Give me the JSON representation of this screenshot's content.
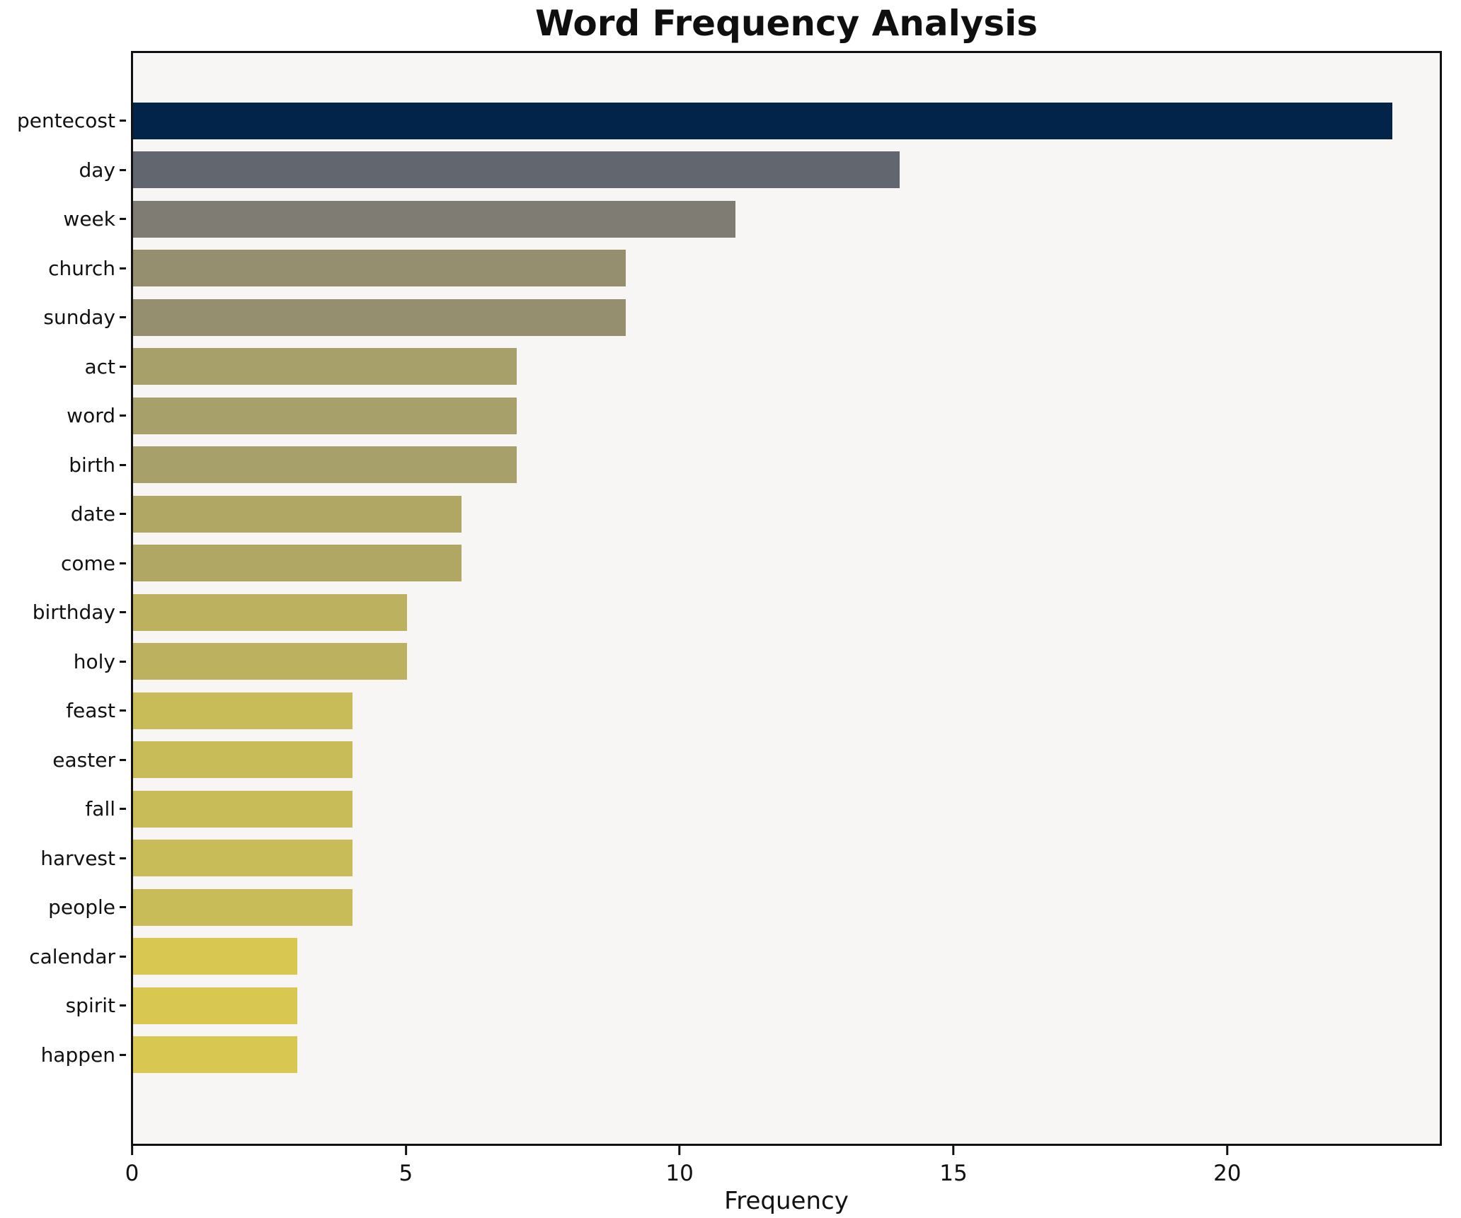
{
  "title": "Word Frequency Analysis",
  "xlabel": "Frequency",
  "colors": {
    "figure_bg": "#ffffff",
    "plot_bg": "#f7f6f4",
    "spine": "#111111",
    "text": "#111111"
  },
  "chart_data": {
    "type": "bar",
    "orientation": "horizontal",
    "title": "Word Frequency Analysis",
    "xlabel": "Frequency",
    "ylabel": "",
    "categories": [
      "pentecost",
      "day",
      "week",
      "church",
      "sunday",
      "act",
      "word",
      "birth",
      "date",
      "come",
      "birthday",
      "holy",
      "feast",
      "easter",
      "fall",
      "harvest",
      "people",
      "calendar",
      "spirit",
      "happen"
    ],
    "values": [
      23,
      14,
      11,
      9,
      9,
      7,
      7,
      7,
      6,
      6,
      5,
      5,
      4,
      4,
      4,
      4,
      4,
      3,
      3,
      3
    ],
    "bar_colors": [
      "#022449",
      "#62666f",
      "#7f7c74",
      "#958f70",
      "#958f70",
      "#a8a06b",
      "#a8a06b",
      "#a8a06b",
      "#b0a765",
      "#b0a765",
      "#bcb15e",
      "#bcb15e",
      "#c8bc58",
      "#c8bc58",
      "#c8bc58",
      "#c8bc58",
      "#c8bc58",
      "#d8c851",
      "#d8c851",
      "#d8c851"
    ],
    "xlim": [
      0,
      23.9
    ],
    "xticks": [
      0,
      5,
      10,
      15,
      20
    ],
    "grid": false,
    "legend": null,
    "colormap_note": "cividis reversed, scaled by value"
  }
}
